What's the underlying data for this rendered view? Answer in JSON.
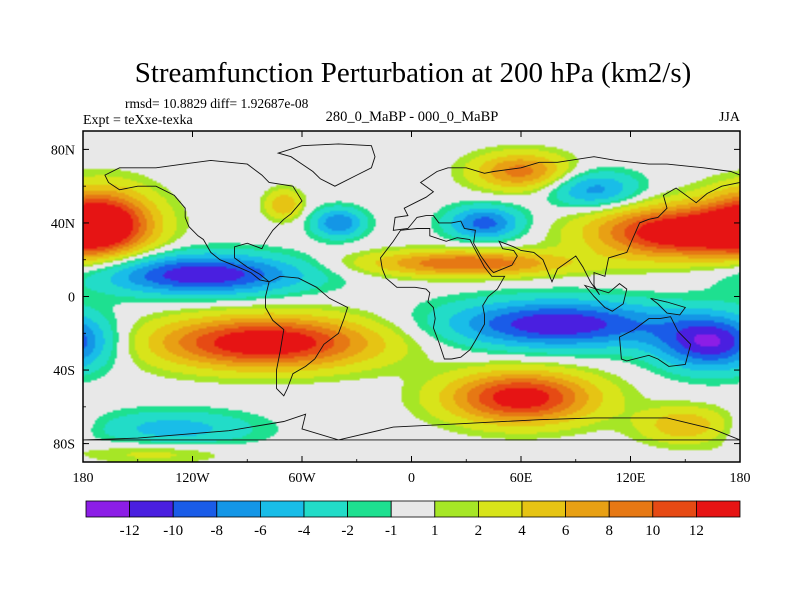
{
  "chart_data": {
    "type": "heatmap",
    "title": "Streamfunction Perturbation at 200 hPa (km2/s)",
    "stats_label": "rmsd= 10.8829 diff= 1.92687e-08",
    "experiment_label": "Expt = teXxe-texka",
    "subtitle": "280_0_MaBP - 000_0_MaBP",
    "season": "JJA",
    "xlabel": "",
    "ylabel": "",
    "xlim": [
      -180,
      180
    ],
    "ylim": [
      -90,
      90
    ],
    "x_ticks": [
      {
        "value": -180,
        "label": "180"
      },
      {
        "value": -120,
        "label": "120W"
      },
      {
        "value": -60,
        "label": "60W"
      },
      {
        "value": 0,
        "label": "0"
      },
      {
        "value": 60,
        "label": "60E"
      },
      {
        "value": 120,
        "label": "120E"
      },
      {
        "value": 180,
        "label": "180"
      }
    ],
    "y_ticks": [
      {
        "value": 80,
        "label": "80N"
      },
      {
        "value": 40,
        "label": "40N"
      },
      {
        "value": 0,
        "label": "0"
      },
      {
        "value": -40,
        "label": "40S"
      },
      {
        "value": -80,
        "label": "80S"
      }
    ],
    "colorbar": {
      "colors": [
        "#8c1ee6",
        "#4a1fe0",
        "#1a5ce8",
        "#1496e6",
        "#19bde8",
        "#22dcc8",
        "#1ee090",
        "#e8e8e8",
        "#a6e626",
        "#d8e41a",
        "#e6c414",
        "#e8a014",
        "#e67814",
        "#e64a14",
        "#e61414"
      ],
      "levels": [
        -12,
        -10,
        -8,
        -6,
        -4,
        -2,
        -1,
        1,
        2,
        4,
        6,
        8,
        10,
        12
      ],
      "level_labels": [
        "-12",
        "-10",
        "-8",
        "-6",
        "-4",
        "-2",
        "-1",
        "1",
        "2",
        "4",
        "6",
        "8",
        "10",
        "12"
      ]
    },
    "field_features": [
      {
        "lon": -170,
        "lat": 40,
        "amplitude": 15,
        "lon_width": 28,
        "lat_width": 18
      },
      {
        "lon": 145,
        "lat": 35,
        "amplitude": 15,
        "lon_width": 45,
        "lat_width": 14
      },
      {
        "lon": 30,
        "lat": 18,
        "amplitude": 10,
        "lon_width": 55,
        "lat_width": 7
      },
      {
        "lon": 60,
        "lat": 68,
        "amplitude": 9,
        "lon_width": 26,
        "lat_width": 10
      },
      {
        "lon": -115,
        "lat": 12,
        "amplitude": -12,
        "lon_width": 55,
        "lat_width": 11
      },
      {
        "lon": 40,
        "lat": 40,
        "amplitude": -9,
        "lon_width": 20,
        "lat_width": 9
      },
      {
        "lon": -40,
        "lat": 40,
        "amplitude": -8,
        "lon_width": 14,
        "lat_width": 8
      },
      {
        "lon": 100,
        "lat": 58,
        "amplitude": -7,
        "lon_width": 25,
        "lat_width": 10
      },
      {
        "lon": -70,
        "lat": 50,
        "amplitude": 6,
        "lon_width": 10,
        "lat_width": 8
      },
      {
        "lon": -80,
        "lat": -25,
        "amplitude": 15,
        "lon_width": 60,
        "lat_width": 14
      },
      {
        "lon": 60,
        "lat": -55,
        "amplitude": 14,
        "lon_width": 40,
        "lat_width": 14
      },
      {
        "lon": 150,
        "lat": -70,
        "amplitude": 6,
        "lon_width": 25,
        "lat_width": 10
      },
      {
        "lon": 80,
        "lat": -15,
        "amplitude": -12,
        "lon_width": 60,
        "lat_width": 13
      },
      {
        "lon": 165,
        "lat": -25,
        "amplitude": -12,
        "lon_width": 30,
        "lat_width": 15
      },
      {
        "lon": -130,
        "lat": -72,
        "amplitude": -5,
        "lon_width": 45,
        "lat_width": 10
      },
      {
        "lon": -140,
        "lat": -85,
        "amplitude": 3,
        "lon_width": 40,
        "lat_width": 6
      }
    ]
  }
}
